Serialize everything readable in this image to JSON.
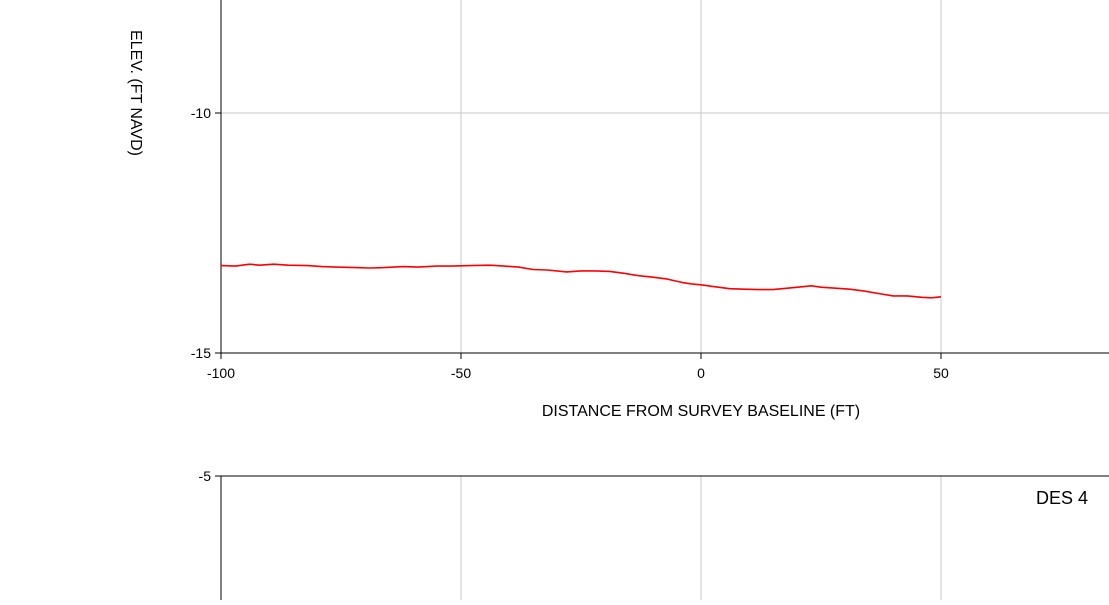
{
  "colors": {
    "series": "#ff0000",
    "grid": "#c8c8c8",
    "axis": "#000000",
    "background": "#ffffff"
  },
  "chart_data": [
    {
      "type": "line",
      "title": "",
      "xlabel": "DISTANCE FROM SURVEY BASELINE (FT)",
      "ylabel": "ELEV. (FT NAVD)",
      "xlim": [
        -100,
        50
      ],
      "ylim": [
        -15,
        -10
      ],
      "x_ticks": [
        "-100",
        "-50",
        "0",
        "50"
      ],
      "y_ticks": [
        "-15",
        "-10"
      ],
      "grid": true,
      "series": [
        {
          "x": [
            -100,
            -97,
            -94,
            -92,
            -89,
            -86,
            -82,
            -79,
            -76,
            -72,
            -69,
            -66,
            -62,
            -59,
            -55,
            -52,
            -48,
            -44,
            -41,
            -38,
            -35,
            -32,
            -28,
            -25,
            -22,
            -19,
            -16,
            -13,
            -10,
            -7,
            -4,
            -2,
            0,
            3,
            6,
            9,
            12,
            15,
            18,
            21,
            23,
            25,
            28,
            31,
            34,
            37,
            40,
            43,
            46,
            48,
            50
          ],
          "y": [
            -13.18,
            -13.19,
            -13.15,
            -13.17,
            -13.15,
            -13.17,
            -13.18,
            -13.2,
            -13.21,
            -13.22,
            -13.23,
            -13.22,
            -13.2,
            -13.21,
            -13.19,
            -13.19,
            -13.18,
            -13.17,
            -13.19,
            -13.21,
            -13.26,
            -13.27,
            -13.31,
            -13.29,
            -13.29,
            -13.3,
            -13.34,
            -13.39,
            -13.42,
            -13.46,
            -13.53,
            -13.56,
            -13.58,
            -13.62,
            -13.66,
            -13.67,
            -13.68,
            -13.68,
            -13.65,
            -13.62,
            -13.6,
            -13.63,
            -13.65,
            -13.67,
            -13.71,
            -13.76,
            -13.81,
            -13.81,
            -13.84,
            -13.85,
            -13.83
          ]
        }
      ]
    },
    {
      "type": "line",
      "title": "DES 4",
      "xlabel": "",
      "ylabel": "",
      "xlim": [
        -100,
        50
      ],
      "ylim": [
        null,
        -5
      ],
      "x_ticks": [],
      "y_ticks": [
        "-5"
      ],
      "grid": true,
      "series": []
    }
  ]
}
